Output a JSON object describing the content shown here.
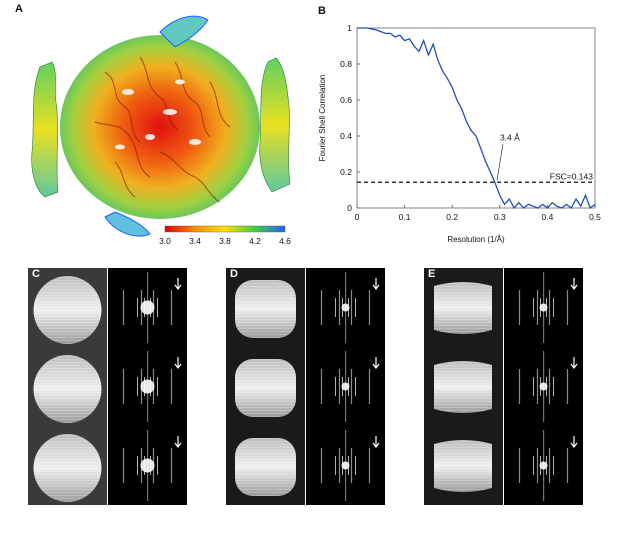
{
  "panels": {
    "a": "A",
    "b": "B",
    "c": "C",
    "d": "D",
    "e": "E"
  },
  "colorbar": {
    "ticks": [
      "3.0",
      "3.4",
      "3.8",
      "4.2",
      "4.6"
    ],
    "colors": [
      "#e00000",
      "#ff8c00",
      "#ffe000",
      "#40d040",
      "#2060ff"
    ]
  },
  "chart_data": {
    "type": "line",
    "xlabel": "Resolution (1/Å)",
    "ylabel": "Fourier Shell Correlation",
    "xlim": [
      0,
      0.5
    ],
    "ylim": [
      0,
      1
    ],
    "xticks": [
      "0",
      "0.1",
      "0.2",
      "0.3",
      "0.4",
      "0.5"
    ],
    "yticks": [
      "0",
      "0.2",
      "0.4",
      "0.6",
      "0.8",
      "1"
    ],
    "threshold": {
      "value": 0.143,
      "label": "FSC=0.143"
    },
    "annotation": {
      "label": "3.4 Å",
      "x": 0.294,
      "y": 0.143
    },
    "series": [
      {
        "color": "#1f4fbf",
        "x": [
          0.0,
          0.02,
          0.04,
          0.05,
          0.06,
          0.07,
          0.08,
          0.09,
          0.1,
          0.11,
          0.12,
          0.13,
          0.14,
          0.15,
          0.16,
          0.17,
          0.18,
          0.19,
          0.2,
          0.21,
          0.22,
          0.23,
          0.24,
          0.25,
          0.26,
          0.27,
          0.28,
          0.29,
          0.3,
          0.31,
          0.32,
          0.33,
          0.34,
          0.35,
          0.36,
          0.37,
          0.38,
          0.39,
          0.4,
          0.41,
          0.42,
          0.43,
          0.44,
          0.45,
          0.46,
          0.47,
          0.48,
          0.49,
          0.5
        ],
        "y": [
          1.0,
          1.0,
          0.99,
          0.98,
          0.97,
          0.97,
          0.95,
          0.96,
          0.93,
          0.94,
          0.9,
          0.87,
          0.93,
          0.85,
          0.91,
          0.82,
          0.76,
          0.72,
          0.67,
          0.6,
          0.55,
          0.48,
          0.43,
          0.4,
          0.33,
          0.26,
          0.2,
          0.14,
          0.07,
          0.02,
          0.05,
          0.0,
          0.03,
          0.0,
          0.02,
          0.01,
          0.0,
          0.02,
          0.0,
          0.03,
          0.01,
          0.0,
          0.02,
          0.0,
          0.05,
          0.01,
          0.07,
          0.0,
          0.02
        ]
      }
    ]
  }
}
